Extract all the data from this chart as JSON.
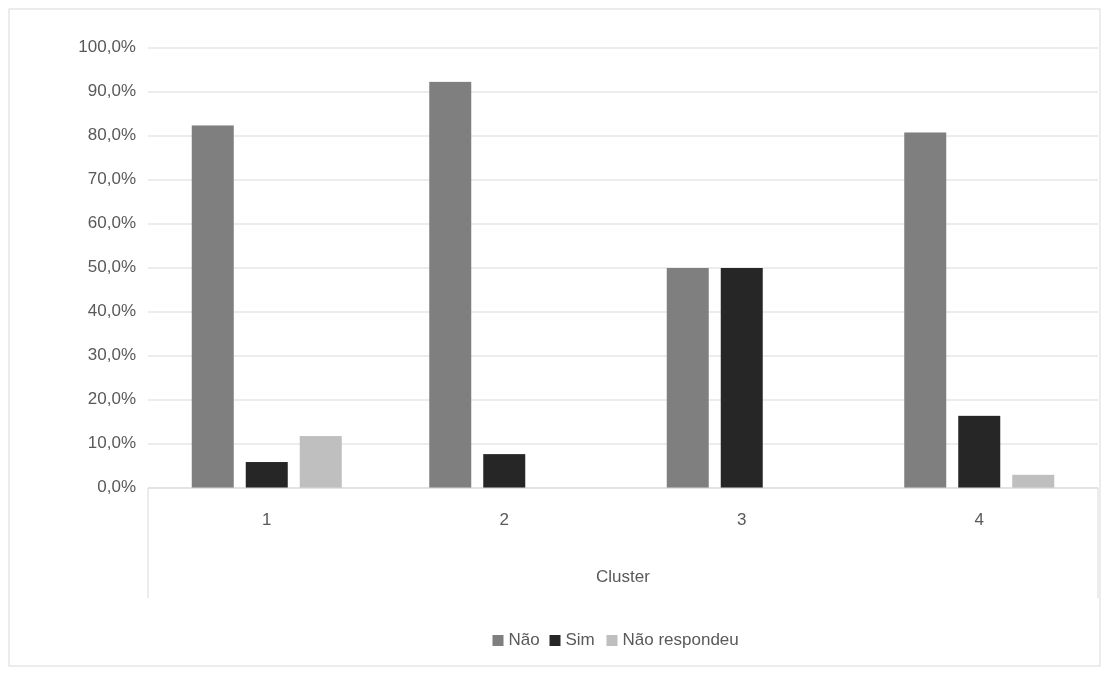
{
  "chart_data": {
    "type": "bar",
    "xlabel": "Cluster",
    "categories": [
      "1",
      "2",
      "3",
      "4"
    ],
    "series": [
      {
        "name": "Não",
        "color": "#7f7f7f",
        "values": [
          82.4,
          92.3,
          50.0,
          80.8
        ]
      },
      {
        "name": "Sim",
        "color": "#262626",
        "values": [
          5.9,
          7.7,
          50.0,
          16.4
        ]
      },
      {
        "name": "Não respondeu",
        "color": "#bfbfbf",
        "values": [
          11.8,
          null,
          null,
          3.0
        ]
      }
    ],
    "ylim": [
      0,
      100
    ],
    "yticks": [
      {
        "value": 0,
        "label": "0,0%"
      },
      {
        "value": 10,
        "label": "10,0%"
      },
      {
        "value": 20,
        "label": "20,0%"
      },
      {
        "value": 30,
        "label": "30,0%"
      },
      {
        "value": 40,
        "label": "40,0%"
      },
      {
        "value": 50,
        "label": "50,0%"
      },
      {
        "value": 60,
        "label": "60,0%"
      },
      {
        "value": 70,
        "label": "70,0%"
      },
      {
        "value": 80,
        "label": "80,0%"
      },
      {
        "value": 90,
        "label": "90,0%"
      },
      {
        "value": 100,
        "label": "100,0%"
      }
    ],
    "grid": "y",
    "legend": "bottom"
  }
}
